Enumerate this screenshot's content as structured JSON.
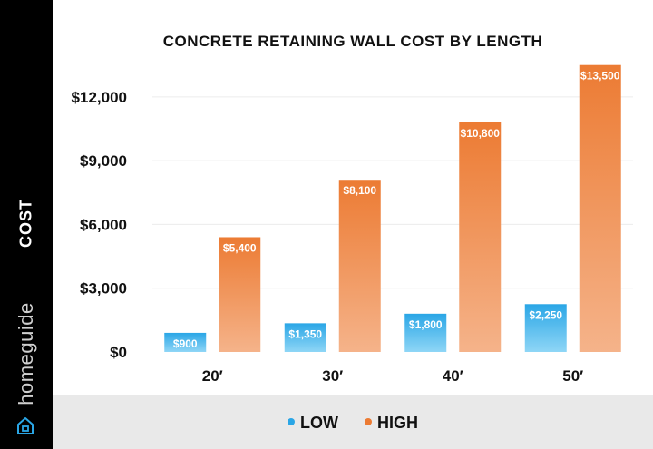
{
  "brand": "homeguide",
  "chart_data": {
    "type": "bar",
    "title": "CONCRETE RETAINING WALL COST BY LENGTH",
    "xlabel": "",
    "ylabel": "COST",
    "ylim": [
      0,
      14000
    ],
    "yticks": [
      0,
      3000,
      6000,
      9000,
      12000
    ],
    "ytick_labels": [
      "$0",
      "$3,000",
      "$6,000",
      "$9,000",
      "$12,000"
    ],
    "categories": [
      "20′",
      "30′",
      "40′",
      "50′"
    ],
    "series": [
      {
        "name": "LOW",
        "values": [
          900,
          1350,
          1800,
          2250
        ],
        "labels": [
          "$900",
          "$1,350",
          "$1,800",
          "$2,250"
        ],
        "color_top": "#2aa6e6",
        "color_bottom": "#8fd6f6"
      },
      {
        "name": "HIGH",
        "values": [
          5400,
          8100,
          10800,
          13500
        ],
        "labels": [
          "$5,400",
          "$8,100",
          "$10,800",
          "$13,500"
        ],
        "color_top": "#ec7b33",
        "color_bottom": "#f5b38a"
      }
    ],
    "grid": true,
    "legend_position": "bottom"
  }
}
